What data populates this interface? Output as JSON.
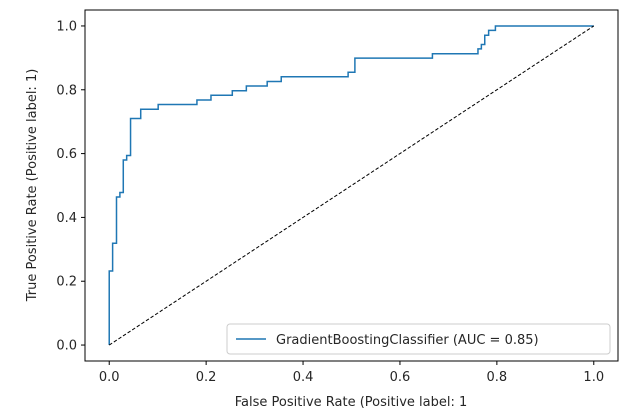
{
  "chart_data": {
    "type": "line",
    "xlabel": "False Positive Rate (Positive label: 1",
    "ylabel": "True Positive Rate (Positive label: 1)",
    "xlim": [
      -0.05,
      1.05
    ],
    "ylim": [
      -0.05,
      1.05
    ],
    "x_ticks": [
      0.0,
      0.2,
      0.4,
      0.6,
      0.8,
      1.0
    ],
    "y_ticks": [
      0.0,
      0.2,
      0.4,
      0.6,
      0.8,
      1.0
    ],
    "x_tick_labels": [
      "0.0",
      "0.2",
      "0.4",
      "0.6",
      "0.8",
      "1.0"
    ],
    "y_tick_labels": [
      "0.0",
      "0.2",
      "0.4",
      "0.6",
      "0.8",
      "1.0"
    ],
    "grid": false,
    "legend_position": "lower-right",
    "series": [
      {
        "name": "GradientBoostingClassifier (AUC = 0.85)",
        "color": "#1f77b4",
        "style": "step",
        "x": [
          0.0,
          0.0,
          0.007,
          0.007,
          0.015,
          0.015,
          0.022,
          0.022,
          0.029,
          0.029,
          0.036,
          0.036,
          0.044,
          0.044,
          0.065,
          0.065,
          0.101,
          0.101,
          0.181,
          0.181,
          0.21,
          0.21,
          0.254,
          0.254,
          0.283,
          0.283,
          0.326,
          0.326,
          0.355,
          0.355,
          0.493,
          0.493,
          0.507,
          0.507,
          0.667,
          0.667,
          0.761,
          0.761,
          0.768,
          0.768,
          0.775,
          0.775,
          0.783,
          0.783,
          0.797,
          0.797,
          0.899,
          0.899,
          1.0
        ],
        "y": [
          0.0,
          0.232,
          0.232,
          0.319,
          0.319,
          0.464,
          0.464,
          0.478,
          0.478,
          0.58,
          0.58,
          0.594,
          0.594,
          0.71,
          0.71,
          0.739,
          0.739,
          0.754,
          0.754,
          0.768,
          0.768,
          0.783,
          0.783,
          0.797,
          0.797,
          0.812,
          0.812,
          0.826,
          0.826,
          0.841,
          0.841,
          0.855,
          0.855,
          0.899,
          0.899,
          0.913,
          0.913,
          0.928,
          0.928,
          0.942,
          0.942,
          0.971,
          0.971,
          0.986,
          0.986,
          1.0,
          1.0,
          1.0,
          1.0
        ]
      },
      {
        "name": "",
        "color": "#000000",
        "style": "dashed",
        "x": [
          0.0,
          1.0
        ],
        "y": [
          0.0,
          1.0
        ]
      }
    ]
  }
}
